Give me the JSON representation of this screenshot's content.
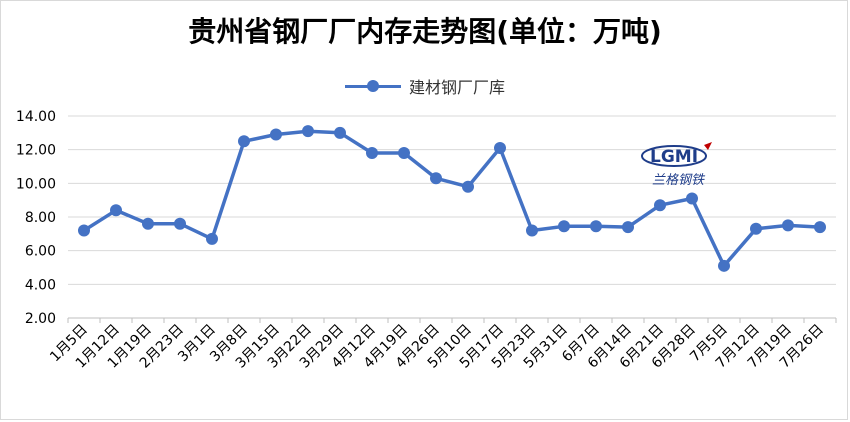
{
  "chart_data": {
    "type": "line",
    "title": "贵州省钢厂厂内存走势图(单位：万吨)",
    "categories": [
      "1月5日",
      "1月12日",
      "1月19日",
      "2月23日",
      "3月1日",
      "3月8日",
      "3月15日",
      "3月22日",
      "3月29日",
      "4月12日",
      "4月19日",
      "4月26日",
      "5月10日",
      "5月17日",
      "5月23日",
      "5月31日",
      "6月7日",
      "6月14日",
      "6月21日",
      "6月28日",
      "7月5日",
      "7月12日",
      "7月19日",
      "7月26日"
    ],
    "series": [
      {
        "name": "建材钢厂厂库",
        "values": [
          7.2,
          8.4,
          7.6,
          7.6,
          6.7,
          12.5,
          12.9,
          13.1,
          13.0,
          11.8,
          11.8,
          10.3,
          9.8,
          12.1,
          7.2,
          7.45,
          7.45,
          7.4,
          8.7,
          9.1,
          5.1,
          7.3,
          7.5,
          7.4
        ],
        "color": "#4472c4"
      }
    ],
    "yticks": [
      "14.00",
      "12.00",
      "10.00",
      "8.00",
      "6.00",
      "4.00",
      "2.00"
    ],
    "ylim": [
      2,
      14
    ],
    "grid": true,
    "legend": "top-center"
  },
  "watermark": {
    "logo_text": "LGMI",
    "brand_text": "兰格钢铁"
  }
}
